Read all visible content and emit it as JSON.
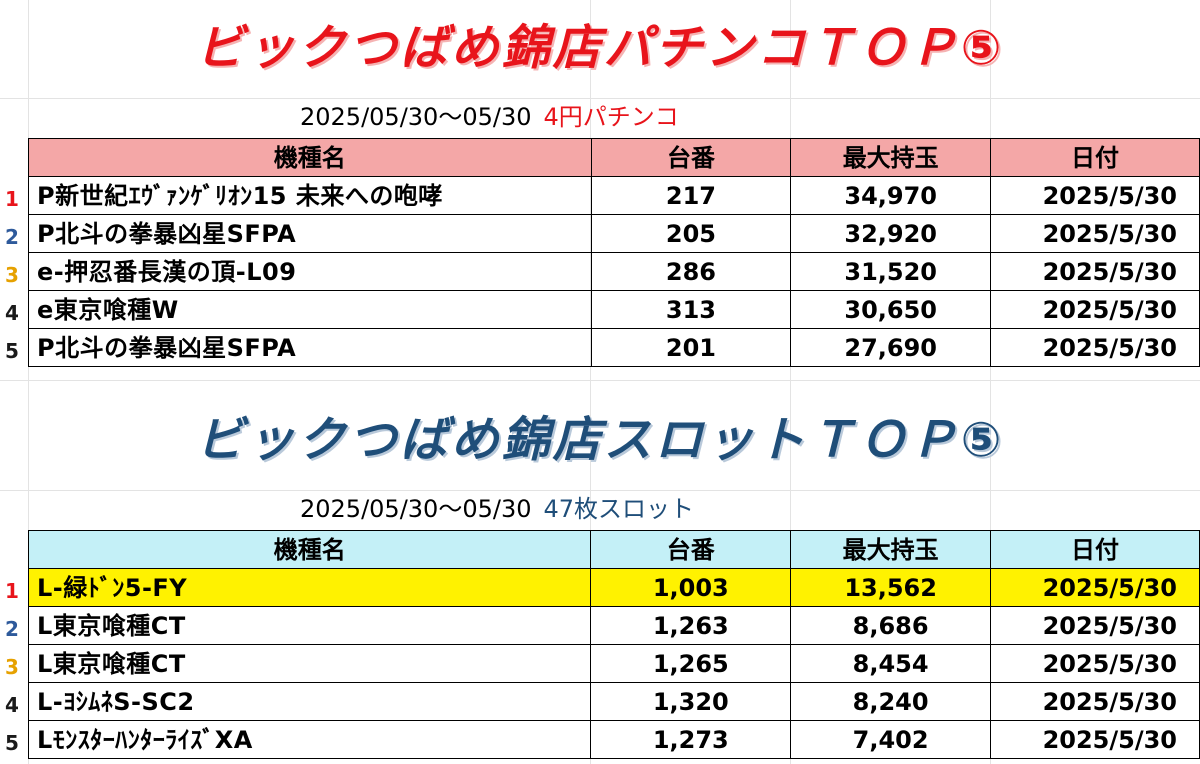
{
  "pachinko": {
    "title": "ビックつばめ錦店パチンコＴＯＰ⑤",
    "period": "2025/05/30～05/30",
    "category": "4円パチンコ",
    "headers": [
      "機種名",
      "台番",
      "最大持玉",
      "日付"
    ],
    "rows": [
      {
        "rank": "1",
        "name": "P新世紀ｴｳﾞｧﾝｹﾞﾘｵﾝ15 未来への咆哮",
        "number": "217",
        "max_balls": "34,970",
        "date": "2025/5/30"
      },
      {
        "rank": "2",
        "name": "P北斗の拳暴凶星SFPA",
        "number": "205",
        "max_balls": "32,920",
        "date": "2025/5/30"
      },
      {
        "rank": "3",
        "name": "e-押忍番長漢の頂-L09",
        "number": "286",
        "max_balls": "31,520",
        "date": "2025/5/30"
      },
      {
        "rank": "4",
        "name": "e東京喰種W",
        "number": "313",
        "max_balls": "30,650",
        "date": "2025/5/30"
      },
      {
        "rank": "5",
        "name": "P北斗の拳暴凶星SFPA",
        "number": "201",
        "max_balls": "27,690",
        "date": "2025/5/30"
      }
    ]
  },
  "slot": {
    "title": "ビックつばめ錦店スロットＴＯＰ⑤",
    "period": "2025/05/30～05/30",
    "category": "47枚スロット",
    "headers": [
      "機種名",
      "台番",
      "最大持玉",
      "日付"
    ],
    "rows": [
      {
        "rank": "1",
        "name": "L-緑ﾄﾞﾝ5-FY",
        "number": "1,003",
        "max_balls": "13,562",
        "date": "2025/5/30"
      },
      {
        "rank": "2",
        "name": "L東京喰種CT",
        "number": "1,263",
        "max_balls": "8,686",
        "date": "2025/5/30"
      },
      {
        "rank": "3",
        "name": "L東京喰種CT",
        "number": "1,265",
        "max_balls": "8,454",
        "date": "2025/5/30"
      },
      {
        "rank": "4",
        "name": "L-ﾖｼﾑﾈS-SC2",
        "number": "1,320",
        "max_balls": "8,240",
        "date": "2025/5/30"
      },
      {
        "rank": "5",
        "name": "LﾓﾝｽﾀｰﾊﾝﾀｰﾗｲｽﾞXA",
        "number": "1,273",
        "max_balls": "7,402",
        "date": "2025/5/30"
      }
    ]
  },
  "colors": {
    "pachinko_title": "#e8141b",
    "slot_title": "#1f4e79",
    "pachinko_header_bg": "#f4a7a7",
    "slot_header_bg": "#c4f0f7",
    "highlight_row": "#fff200"
  }
}
